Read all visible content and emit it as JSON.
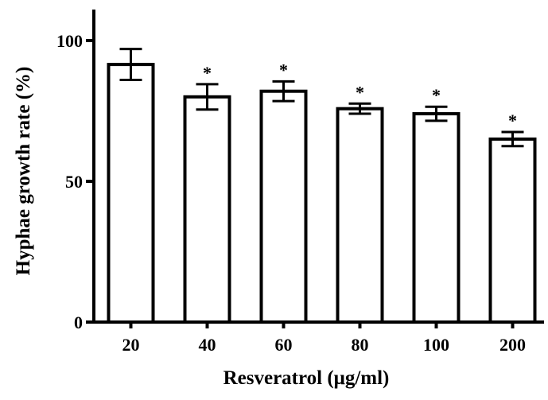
{
  "chart_data": {
    "type": "bar",
    "title": "",
    "xlabel": "Resveratrol (μg/ml)",
    "ylabel": "Hyphae growth rate (%)",
    "categories": [
      "20",
      "40",
      "60",
      "80",
      "100",
      "200"
    ],
    "values": [
      91.5,
      80,
      82,
      75.8,
      74,
      65
    ],
    "error": [
      5.5,
      4.5,
      3.5,
      1.8,
      2.5,
      2.5
    ],
    "significance": [
      "",
      "*",
      "*",
      "*",
      "*",
      "*"
    ],
    "ylim": [
      0,
      100
    ],
    "yticks": [
      0,
      50,
      100
    ],
    "grid": false,
    "legend": "none",
    "colors": {
      "bar_fill": "#ffffff",
      "bar_stroke": "#000000",
      "axis": "#000000"
    }
  }
}
